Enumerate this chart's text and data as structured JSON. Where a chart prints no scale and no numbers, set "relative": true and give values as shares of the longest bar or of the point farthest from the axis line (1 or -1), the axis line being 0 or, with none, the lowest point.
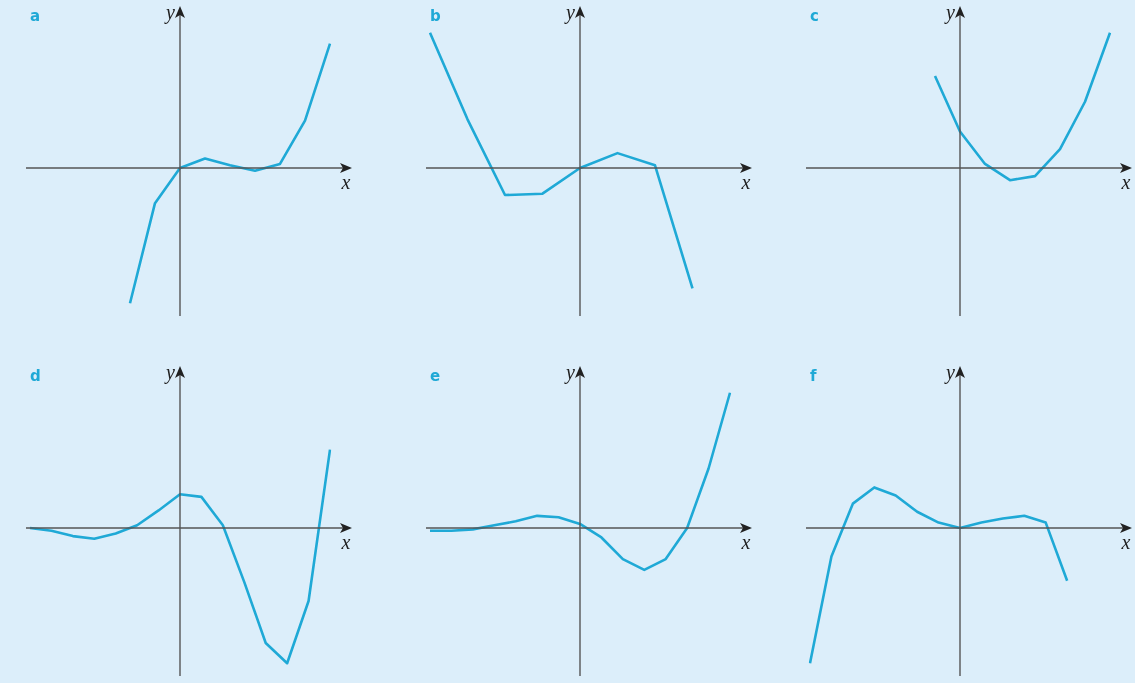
{
  "chart_data": [
    {
      "type": "line",
      "title": "a",
      "xlabel": "x",
      "ylabel": "y",
      "relative": true,
      "marker": "none",
      "categories": [
        null,
        null,
        null,
        null,
        null,
        null,
        null,
        null,
        null,
        null,
        null,
        null,
        null
      ],
      "series": [
        {
          "color": "#1fa9d6",
          "values": [
            null,
            null,
            null,
            null,
            -1,
            -0.26,
            0,
            0.07,
            0.02,
            -0.02,
            0.03,
            0.35,
            0.92
          ]
        }
      ]
    },
    {
      "type": "line",
      "title": "b",
      "xlabel": "x",
      "ylabel": "y",
      "relative": true,
      "marker": "none",
      "categories": [
        null,
        null,
        null,
        null,
        null,
        null,
        null,
        null,
        null
      ],
      "series": [
        {
          "color": "#1fa9d6",
          "values": [
            1,
            0.36,
            -0.2,
            -0.19,
            0,
            0.11,
            0.02,
            -0.89,
            null
          ]
        }
      ]
    },
    {
      "type": "line",
      "title": "c",
      "xlabel": "x",
      "ylabel": "y",
      "relative": true,
      "marker": "none",
      "categories": [
        null,
        null,
        null,
        null,
        null,
        null,
        null,
        null,
        null,
        null,
        null,
        null,
        null
      ],
      "series": [
        {
          "color": "#1fa9d6",
          "values": [
            null,
            null,
            null,
            null,
            null,
            0.68,
            0.27,
            0.03,
            -0.09,
            -0.06,
            0.14,
            0.49,
            1
          ]
        }
      ]
    },
    {
      "type": "line",
      "title": "d",
      "xlabel": "x",
      "ylabel": "y",
      "relative": true,
      "marker": "none",
      "categories": [
        null,
        null,
        null,
        null,
        null,
        null,
        null,
        null,
        null,
        null,
        null,
        null,
        null,
        null,
        null
      ],
      "series": [
        {
          "color": "#1fa9d6",
          "values": [
            0,
            -0.02,
            -0.06,
            -0.08,
            -0.04,
            0.02,
            0.13,
            0.25,
            0.23,
            0.02,
            -0.4,
            -0.85,
            -1,
            -0.54,
            0.58
          ]
        }
      ]
    },
    {
      "type": "line",
      "title": "e",
      "xlabel": "x",
      "ylabel": "y",
      "relative": true,
      "marker": "none",
      "categories": [
        null,
        null,
        null,
        null,
        null,
        null,
        null,
        null,
        null,
        null,
        null,
        null,
        null,
        null,
        null
      ],
      "series": [
        {
          "color": "#1fa9d6",
          "values": [
            -0.02,
            -0.02,
            -0.01,
            0.02,
            0.05,
            0.09,
            0.08,
            0.03,
            -0.07,
            -0.23,
            -0.31,
            -0.23,
            0,
            0.44,
            1
          ]
        }
      ]
    },
    {
      "type": "line",
      "title": "f",
      "xlabel": "x",
      "ylabel": "y",
      "relative": true,
      "marker": "none",
      "categories": [
        null,
        null,
        null,
        null,
        null,
        null,
        null,
        null,
        null,
        null,
        null,
        null,
        null,
        null,
        null
      ],
      "series": [
        {
          "color": "#1fa9d6",
          "values": [
            -1,
            -0.21,
            0.18,
            0.3,
            0.24,
            0.12,
            0.04,
            0,
            0.04,
            0.07,
            0.09,
            0.04,
            -0.39,
            null,
            null
          ]
        }
      ]
    }
  ]
}
